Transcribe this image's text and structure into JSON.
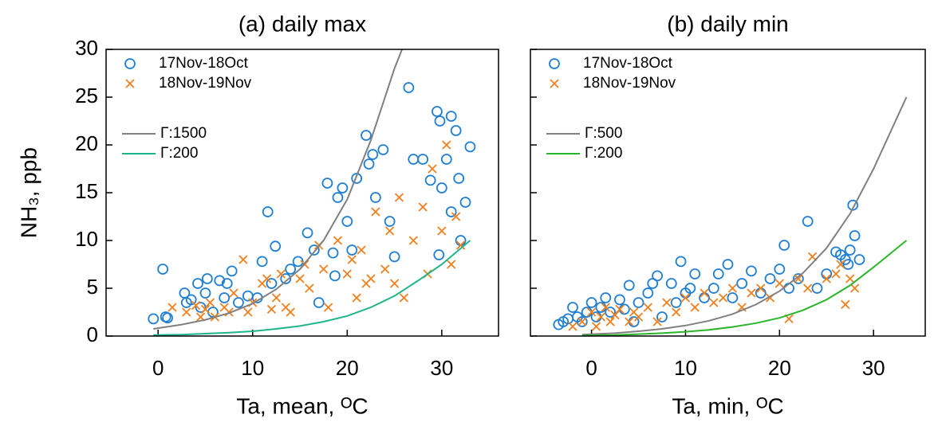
{
  "chart_data": [
    {
      "type": "scatter",
      "title": "(a)  daily max",
      "xlabel": "Ta, mean, ᴼC",
      "ylabel": "NH₃, ppb",
      "xlim": [
        -5.5,
        36
      ],
      "ylim": [
        0,
        30
      ],
      "xticks": [
        0,
        10,
        20,
        30
      ],
      "yticks": [
        0,
        5,
        10,
        15,
        20,
        25,
        30
      ],
      "show_ytick_labels": true,
      "series": [
        {
          "name": "17Nov-18Oct",
          "marker": "circle",
          "color": "#1f7fd4",
          "x": [
            -0.5,
            0.5,
            0.8,
            1,
            2.8,
            3,
            3.5,
            4.2,
            4.5,
            5,
            5.2,
            5.8,
            6.5,
            7,
            7.3,
            7.8,
            8.5,
            9.5,
            10.5,
            11,
            11.6,
            12,
            12.4,
            13.5,
            14,
            14.8,
            15.8,
            16.5,
            17,
            17.9,
            18.5,
            19,
            19.5,
            20,
            21,
            22,
            22.3,
            22.7,
            23.8,
            24.5,
            25,
            26.5,
            27,
            28,
            29.5,
            29.8,
            30,
            30.5,
            31,
            31.5,
            31.8,
            32,
            32.5,
            33,
            29.7,
            31,
            28.8,
            23,
            20.5,
            18.7
          ],
          "values": [
            1.8,
            7,
            2,
            1.9,
            4.5,
            3.5,
            3.8,
            5.5,
            3,
            4.5,
            6,
            2.5,
            5.8,
            4,
            5.5,
            6.8,
            3.5,
            4.2,
            4,
            7.8,
            13,
            5.5,
            9.4,
            6,
            7,
            7.8,
            10.8,
            9,
            3.5,
            16,
            8.7,
            14.5,
            15.5,
            12,
            16.5,
            21,
            18,
            19,
            19.5,
            12,
            8.3,
            26,
            18.5,
            18.5,
            23.5,
            22.5,
            15.5,
            18.5,
            23,
            21.5,
            16.5,
            10,
            14,
            19.8,
            8.5,
            13,
            16.3,
            14.5,
            9,
            6.3
          ]
        },
        {
          "name": "18Nov-19Nov",
          "marker": "x",
          "color": "#f07f1e",
          "x": [
            1.5,
            3,
            4,
            4.5,
            5,
            5.5,
            6,
            7,
            7.5,
            8,
            9,
            9.5,
            10,
            11,
            11.5,
            12,
            12.5,
            13,
            13.5,
            14,
            15,
            15.5,
            16,
            17,
            17.5,
            18,
            19,
            20,
            20.5,
            21,
            21.5,
            22,
            22.5,
            23,
            24,
            24.5,
            25,
            25.5,
            26,
            27,
            28,
            28.5,
            29,
            30,
            30.5,
            31,
            31.5,
            32
          ],
          "values": [
            3,
            2.5,
            3.2,
            2,
            2.8,
            3.5,
            2,
            3,
            2.5,
            4.5,
            8,
            2.5,
            3.5,
            5.5,
            6,
            2.8,
            4,
            6.5,
            3,
            2.5,
            6,
            7.5,
            5,
            9.5,
            7,
            3,
            10,
            6.5,
            8,
            4,
            9,
            5.5,
            6,
            13,
            7,
            11,
            5.5,
            14.5,
            4,
            10,
            13.5,
            6.5,
            17.5,
            11,
            20,
            7.5,
            12.5,
            9.5
          ]
        },
        {
          "name": "Γ:1500",
          "marker": "line",
          "color": "#808080",
          "x": [
            -0.5,
            2.5,
            5,
            7.5,
            10,
            12.5,
            15,
            17.5,
            20,
            22.5,
            25,
            25.8
          ],
          "values": [
            0.75,
            1.2,
            1.7,
            2.4,
            3.4,
            4.9,
            7,
            10,
            14.3,
            20.5,
            28,
            30
          ]
        },
        {
          "name": "Γ:200",
          "marker": "line",
          "color": "#1fb58a",
          "x": [
            -0.5,
            2.5,
            5,
            7.5,
            10,
            12.5,
            15,
            17.5,
            20,
            22.5,
            25,
            27.5,
            30,
            33
          ],
          "values": [
            0.1,
            0.15,
            0.25,
            0.35,
            0.5,
            0.75,
            1.05,
            1.5,
            2.1,
            3,
            4.2,
            5.8,
            7.5,
            10
          ]
        }
      ]
    },
    {
      "type": "scatter",
      "title": "(b)  daily min",
      "xlabel": "Ta, min, ᴼC",
      "xlim": [
        -6.5,
        35.5
      ],
      "ylim": [
        0,
        30
      ],
      "xticks": [
        0,
        10,
        20,
        30
      ],
      "yticks": [
        0,
        5,
        10,
        15,
        20,
        25,
        30
      ],
      "show_ytick_labels": false,
      "series": [
        {
          "name": "17Nov-18Oct",
          "marker": "circle",
          "color": "#1f7fd4",
          "x": [
            -3.5,
            -3,
            -2.5,
            -2,
            -1.5,
            -1,
            -0.5,
            0,
            0.5,
            1,
            1.5,
            2,
            3,
            3.5,
            4,
            4.5,
            5,
            6,
            6.5,
            7,
            7.5,
            8.5,
            9,
            9.5,
            10,
            10.5,
            11,
            12,
            13,
            13.5,
            14.5,
            15,
            16,
            17,
            18,
            19,
            20,
            20.5,
            21,
            22,
            23,
            24,
            25,
            26,
            26.5,
            27,
            27.3,
            27.5,
            27.8,
            28,
            28.5
          ],
          "values": [
            1.2,
            1.5,
            1.8,
            3,
            2,
            1.5,
            2.5,
            3.5,
            2,
            3,
            4,
            2.5,
            3.8,
            2.8,
            5.3,
            1.5,
            3.5,
            4.5,
            5.5,
            6.3,
            2,
            5.5,
            3.5,
            7.8,
            4.5,
            5,
            6.5,
            4,
            5,
            6.5,
            7.5,
            4,
            5.5,
            6.8,
            4.5,
            6,
            7,
            9.5,
            5,
            6,
            12,
            5,
            6.5,
            8.8,
            8.5,
            8,
            7.5,
            9,
            13.7,
            10.5,
            8
          ]
        },
        {
          "name": "18Nov-19Nov",
          "marker": "x",
          "color": "#f07f1e",
          "x": [
            -2,
            -1,
            0,
            0.5,
            1,
            1.5,
            2,
            2.5,
            3,
            4,
            4.5,
            5,
            6,
            7,
            8,
            9,
            10,
            11,
            12,
            13,
            14,
            15,
            16,
            17,
            18,
            19,
            20,
            21,
            22,
            23,
            23.5,
            25,
            26,
            26.5,
            27,
            27.5,
            28
          ],
          "values": [
            1,
            1.5,
            2.5,
            1,
            2,
            3,
            1.5,
            2.2,
            2.8,
            1.5,
            2.5,
            2,
            3,
            1.5,
            3.5,
            2.5,
            4,
            3,
            4.5,
            3.5,
            4,
            5,
            3,
            4.5,
            5,
            4,
            5.5,
            1.8,
            6,
            5,
            8.3,
            6,
            6.5,
            7.5,
            3.3,
            6,
            5
          ]
        },
        {
          "name": "Γ:500",
          "marker": "line",
          "color": "#808080",
          "x": [
            -1,
            2.5,
            5,
            7.5,
            10,
            12.5,
            15,
            17.5,
            20,
            22.5,
            25,
            27.5,
            30,
            33.5
          ],
          "values": [
            0.15,
            0.3,
            0.5,
            0.75,
            1.1,
            1.6,
            2.3,
            3.3,
            4.7,
            6.6,
            9.2,
            12.8,
            17.5,
            25
          ]
        },
        {
          "name": "Γ:200",
          "marker": "line",
          "color": "#2ab52a",
          "x": [
            -1,
            2.5,
            5,
            7.5,
            10,
            12.5,
            15,
            17.5,
            20,
            22.5,
            25,
            27.5,
            30,
            33.5
          ],
          "values": [
            0.05,
            0.1,
            0.2,
            0.3,
            0.45,
            0.65,
            0.95,
            1.35,
            1.9,
            2.7,
            3.8,
            5.3,
            7.2,
            10
          ]
        }
      ]
    }
  ]
}
